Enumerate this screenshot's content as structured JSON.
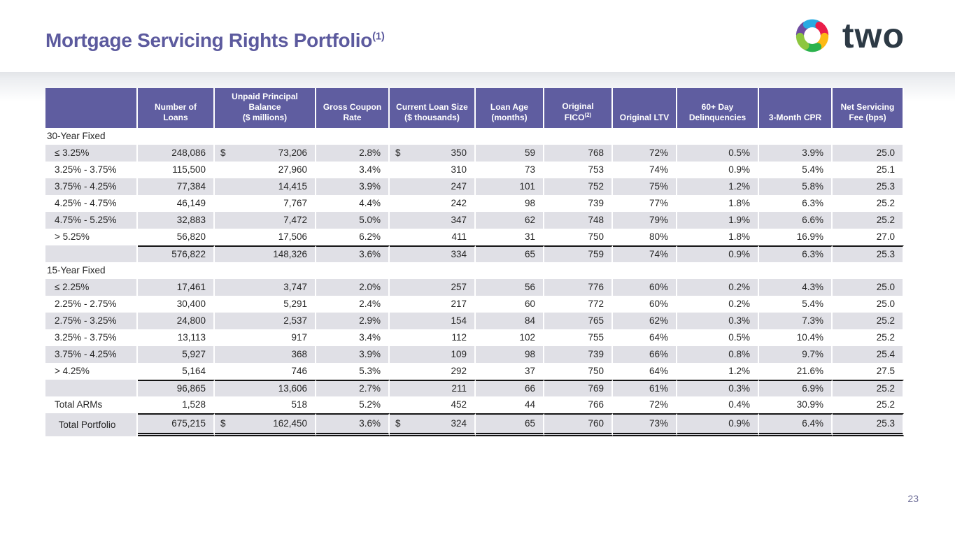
{
  "slide": {
    "title": "Mortgage Servicing Rights Portfolio",
    "title_sup": "(1)",
    "page_number": "23"
  },
  "logo": {
    "wordmark": "two",
    "mark_colors": [
      "#6E4CA0",
      "#29ABE2",
      "#EA1D49",
      "#FDB913",
      "#2BB24C",
      "#8DC63F"
    ]
  },
  "theme": {
    "header_bg": "#5F5DA0",
    "row_shaded": "#E0E0E6",
    "title_color": "#5C5A9E",
    "rule_color": "#141414"
  },
  "table": {
    "columns": [
      {
        "label": ""
      },
      {
        "label": "Number of\nLoans"
      },
      {
        "label": "Unpaid Principal\nBalance\n($ millions)"
      },
      {
        "label": "Gross Coupon\nRate"
      },
      {
        "label": "Current Loan Size\n($ thousands)"
      },
      {
        "label": "Loan Age\n(months)"
      },
      {
        "label": "Original\nFICO",
        "sup": "(2)"
      },
      {
        "label": "Original LTV"
      },
      {
        "label": "60+ Day\nDelinquencies"
      },
      {
        "label": "3-Month CPR"
      },
      {
        "label": "Net Servicing\nFee (bps)"
      }
    ],
    "rows": [
      {
        "type": "section",
        "label": "30-Year Fixed"
      },
      {
        "type": "data",
        "shaded": true,
        "label": "≤ 3.25%",
        "dollar_cols": [
          1,
          3
        ],
        "values": [
          "248,086",
          "73,206",
          "2.8%",
          "350",
          "59",
          "768",
          "72%",
          "0.5%",
          "3.9%",
          "25.0"
        ]
      },
      {
        "type": "data",
        "shaded": false,
        "label": "3.25% - 3.75%",
        "values": [
          "115,500",
          "27,960",
          "3.4%",
          "310",
          "73",
          "753",
          "74%",
          "0.9%",
          "5.4%",
          "25.1"
        ]
      },
      {
        "type": "data",
        "shaded": true,
        "label": "3.75% - 4.25%",
        "values": [
          "77,384",
          "14,415",
          "3.9%",
          "247",
          "101",
          "752",
          "75%",
          "1.2%",
          "5.8%",
          "25.3"
        ]
      },
      {
        "type": "data",
        "shaded": false,
        "label": "4.25% - 4.75%",
        "values": [
          "46,149",
          "7,767",
          "4.4%",
          "242",
          "98",
          "739",
          "77%",
          "1.8%",
          "6.3%",
          "25.2"
        ]
      },
      {
        "type": "data",
        "shaded": true,
        "label": "4.75% - 5.25%",
        "values": [
          "32,883",
          "7,472",
          "5.0%",
          "347",
          "62",
          "748",
          "79%",
          "1.9%",
          "6.6%",
          "25.2"
        ]
      },
      {
        "type": "data",
        "shaded": false,
        "label": "> 5.25%",
        "values": [
          "56,820",
          "17,506",
          "6.2%",
          "411",
          "31",
          "750",
          "80%",
          "1.8%",
          "16.9%",
          "27.0"
        ]
      },
      {
        "type": "subtotal",
        "shaded": true,
        "label": "",
        "values": [
          "576,822",
          "148,326",
          "3.6%",
          "334",
          "65",
          "759",
          "74%",
          "0.9%",
          "6.3%",
          "25.3"
        ]
      },
      {
        "type": "section",
        "label": "15-Year Fixed"
      },
      {
        "type": "data",
        "shaded": true,
        "label": "≤ 2.25%",
        "values": [
          "17,461",
          "3,747",
          "2.0%",
          "257",
          "56",
          "776",
          "60%",
          "0.2%",
          "4.3%",
          "25.0"
        ]
      },
      {
        "type": "data",
        "shaded": false,
        "label": "2.25% - 2.75%",
        "values": [
          "30,400",
          "5,291",
          "2.4%",
          "217",
          "60",
          "772",
          "60%",
          "0.2%",
          "5.4%",
          "25.0"
        ]
      },
      {
        "type": "data",
        "shaded": true,
        "label": "2.75% - 3.25%",
        "values": [
          "24,800",
          "2,537",
          "2.9%",
          "154",
          "84",
          "765",
          "62%",
          "0.3%",
          "7.3%",
          "25.2"
        ]
      },
      {
        "type": "data",
        "shaded": false,
        "label": "3.25% - 3.75%",
        "values": [
          "13,113",
          "917",
          "3.4%",
          "112",
          "102",
          "755",
          "64%",
          "0.5%",
          "10.4%",
          "25.2"
        ]
      },
      {
        "type": "data",
        "shaded": true,
        "label": "3.75% - 4.25%",
        "values": [
          "5,927",
          "368",
          "3.9%",
          "109",
          "98",
          "739",
          "66%",
          "0.8%",
          "9.7%",
          "25.4"
        ]
      },
      {
        "type": "data",
        "shaded": false,
        "label": "> 4.25%",
        "values": [
          "5,164",
          "746",
          "5.3%",
          "292",
          "37",
          "750",
          "64%",
          "1.2%",
          "21.6%",
          "27.5"
        ]
      },
      {
        "type": "subtotal",
        "shaded": true,
        "label": "",
        "values": [
          "96,865",
          "13,606",
          "2.7%",
          "211",
          "66",
          "769",
          "61%",
          "0.3%",
          "6.9%",
          "25.2"
        ]
      },
      {
        "type": "data",
        "shaded": false,
        "label": "Total ARMs",
        "values": [
          "1,528",
          "518",
          "5.2%",
          "452",
          "44",
          "766",
          "72%",
          "0.4%",
          "30.9%",
          "25.2"
        ]
      },
      {
        "type": "total",
        "shaded": true,
        "label": "Total Portfolio",
        "dollar_cols": [
          1,
          3
        ],
        "values": [
          "675,215",
          "162,450",
          "3.6%",
          "324",
          "65",
          "760",
          "73%",
          "0.9%",
          "6.4%",
          "25.3"
        ]
      }
    ]
  }
}
